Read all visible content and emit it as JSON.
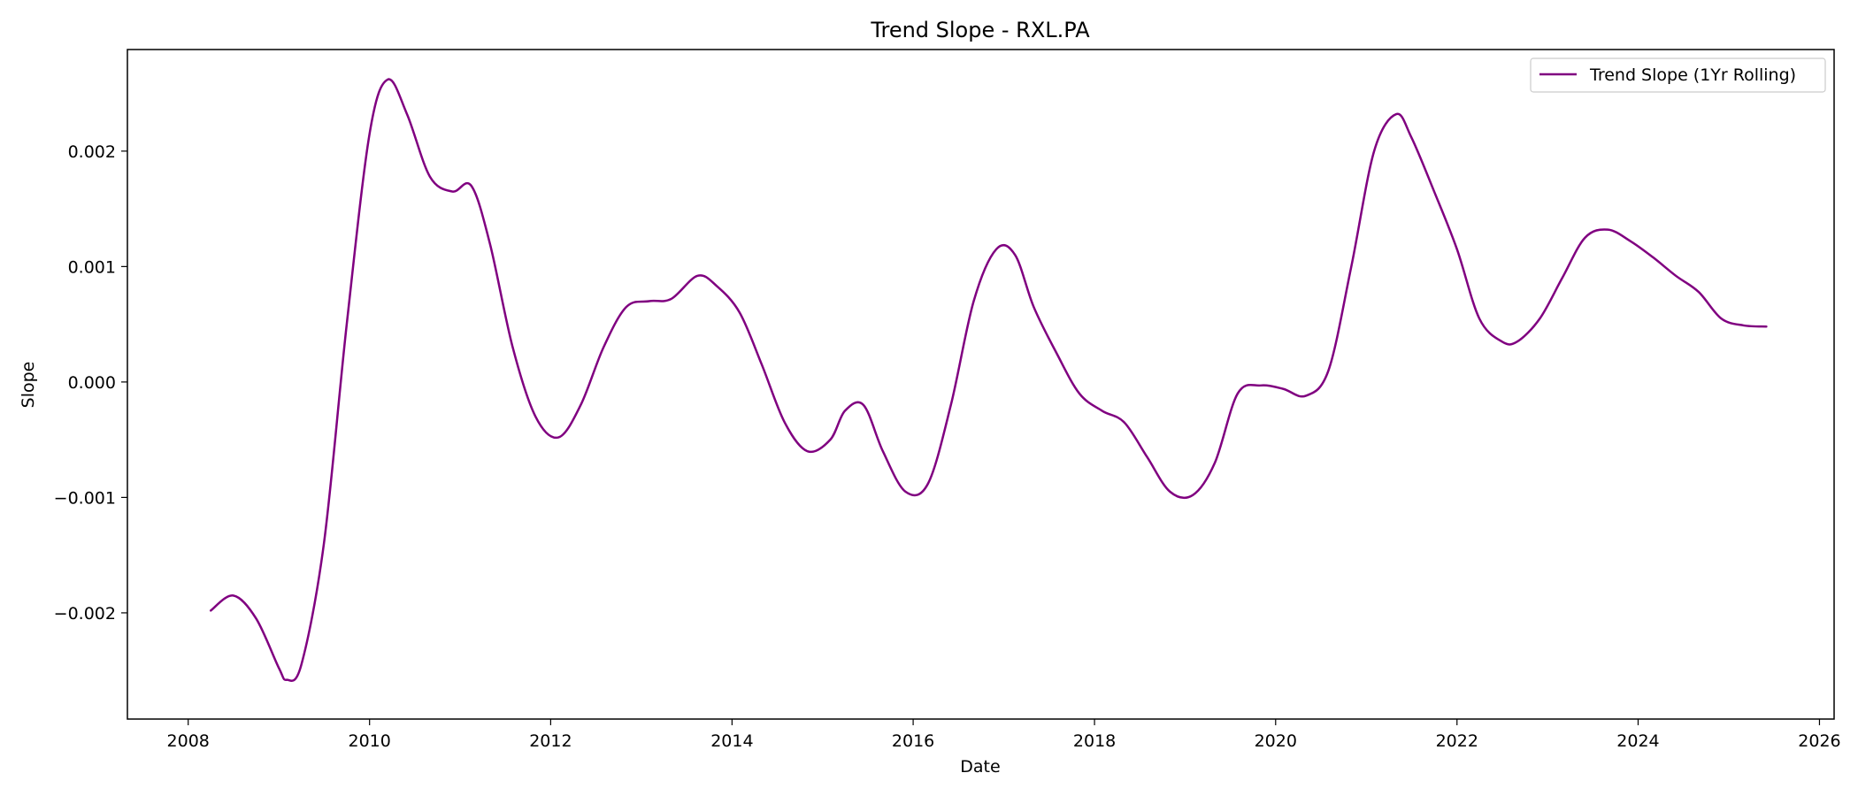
{
  "chart_data": {
    "type": "line",
    "title": "Trend Slope - RXL.PA",
    "xlabel": "Date",
    "ylabel": "Slope",
    "xlim": [
      "2007-05-01",
      "2026-03-01"
    ],
    "ylim": [
      -0.00292,
      0.00288
    ],
    "x_ticks": [
      "2008",
      "2010",
      "2012",
      "2014",
      "2016",
      "2018",
      "2020",
      "2022",
      "2024",
      "2026"
    ],
    "y_ticks": [
      {
        "value": 0.002,
        "label": "0.002"
      },
      {
        "value": 0.001,
        "label": "0.001"
      },
      {
        "value": 0.0,
        "label": "0.000"
      },
      {
        "value": -0.001,
        "label": "−0.001"
      },
      {
        "value": -0.002,
        "label": "−0.002"
      }
    ],
    "grid": false,
    "legend": {
      "position": "top-right"
    },
    "series": [
      {
        "name": "Trend Slope (1Yr Rolling)",
        "color": "#800080",
        "x": [
          "2008-04-01",
          "2008-07-01",
          "2008-10-01",
          "2009-01-01",
          "2009-02-01",
          "2009-04-01",
          "2009-07-01",
          "2009-10-01",
          "2010-01-01",
          "2010-03-15",
          "2010-06-01",
          "2010-09-01",
          "2010-12-01",
          "2011-02-15",
          "2011-05-01",
          "2011-08-01",
          "2011-11-01",
          "2012-02-01",
          "2012-05-01",
          "2012-08-01",
          "2012-11-01",
          "2013-02-01",
          "2013-05-01",
          "2013-08-15",
          "2013-11-01",
          "2014-02-01",
          "2014-05-01",
          "2014-08-01",
          "2014-11-01",
          "2015-02-01",
          "2015-04-01",
          "2015-06-15",
          "2015-09-01",
          "2015-12-01",
          "2016-03-01",
          "2016-06-01",
          "2016-09-01",
          "2016-12-01",
          "2017-02-15",
          "2017-05-01",
          "2017-08-01",
          "2017-11-01",
          "2018-02-01",
          "2018-05-01",
          "2018-08-01",
          "2018-11-01",
          "2019-02-01",
          "2019-05-01",
          "2019-08-01",
          "2019-11-01",
          "2020-02-01",
          "2020-05-01",
          "2020-08-01",
          "2020-11-01",
          "2021-02-01",
          "2021-05-01",
          "2021-07-01",
          "2021-10-01",
          "2022-01-01",
          "2022-04-01",
          "2022-07-01",
          "2022-09-01",
          "2022-12-01",
          "2023-03-01",
          "2023-06-01",
          "2023-09-01",
          "2023-12-01",
          "2024-03-01",
          "2024-06-01",
          "2024-09-01",
          "2024-12-01",
          "2025-03-01",
          "2025-06-01"
        ],
        "y": [
          -0.00198,
          -0.00185,
          -0.00205,
          -0.00248,
          -0.00258,
          -0.00245,
          -0.0014,
          0.0005,
          0.00215,
          0.00262,
          0.00232,
          0.00178,
          0.00165,
          0.0017,
          0.0012,
          0.0003,
          -0.0003,
          -0.00048,
          -0.0002,
          0.0003,
          0.00065,
          0.0007,
          0.00072,
          0.00092,
          0.00083,
          0.0006,
          0.00015,
          -0.00035,
          -0.0006,
          -0.0005,
          -0.00025,
          -0.0002,
          -0.0006,
          -0.00095,
          -0.00088,
          -0.0002,
          0.0007,
          0.00115,
          0.0011,
          0.00065,
          0.00025,
          -0.0001,
          -0.00025,
          -0.00035,
          -0.00065,
          -0.00095,
          -0.00098,
          -0.0007,
          -0.0001,
          -3e-05,
          -6e-05,
          -0.00012,
          0.0001,
          0.001,
          0.002,
          0.00232,
          0.00212,
          0.00165,
          0.00115,
          0.00055,
          0.00035,
          0.00035,
          0.00055,
          0.0009,
          0.00125,
          0.00132,
          0.00122,
          0.00108,
          0.00092,
          0.00078,
          0.00055,
          0.00049,
          0.00048
        ]
      }
    ]
  }
}
